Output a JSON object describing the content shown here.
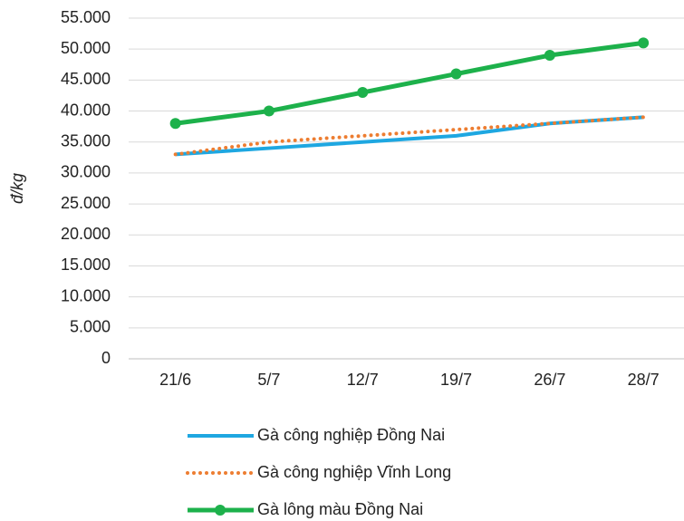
{
  "chart_data": {
    "type": "line",
    "y_label": "đ/kg",
    "categories": [
      "21/6",
      "5/7",
      "12/7",
      "19/7",
      "26/7",
      "28/7"
    ],
    "series": [
      {
        "name": "Gà công nghiệp Đồng Nai",
        "color": "#1ea7e1",
        "style": "solid",
        "markers": false,
        "values": [
          33000,
          34000,
          35000,
          36000,
          38000,
          39000
        ]
      },
      {
        "name": "Gà công nghiệp Vĩnh Long",
        "color": "#ed7d31",
        "style": "dotted",
        "markers": false,
        "values": [
          33000,
          35000,
          36000,
          37000,
          38000,
          39000
        ]
      },
      {
        "name": "Gà lông màu Đồng Nai",
        "color": "#1db14b",
        "style": "solid",
        "markers": true,
        "values": [
          38000,
          40000,
          43000,
          46000,
          49000,
          51000
        ]
      }
    ],
    "ylim": [
      0,
      55000
    ],
    "yticks": [
      0,
      {
        "value": 5000,
        "label": "5.000"
      },
      {
        "value": 10000,
        "label": "10.000"
      },
      {
        "value": 15000,
        "label": "15.000"
      },
      {
        "value": 20000,
        "label": "20.000"
      },
      {
        "value": 25000,
        "label": "25.000"
      },
      {
        "value": 30000,
        "label": "30.000"
      },
      {
        "value": 35000,
        "label": "35.000"
      },
      {
        "value": 40000,
        "label": "40.000"
      },
      {
        "value": 45000,
        "label": "45.000"
      },
      {
        "value": 50000,
        "label": "50.000"
      },
      {
        "value": 55000,
        "label": "55.000"
      }
    ],
    "grid": true,
    "legend": "bottom"
  }
}
